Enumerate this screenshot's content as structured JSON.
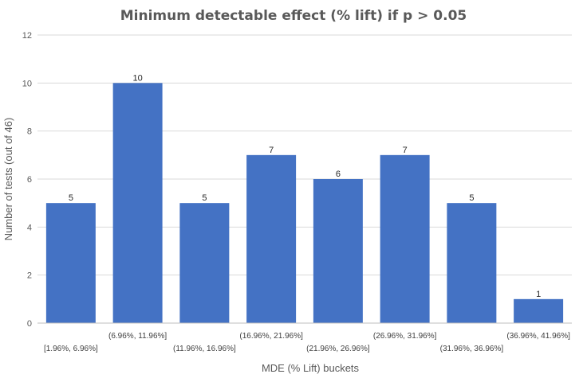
{
  "chart_data": {
    "type": "bar",
    "title": "Minimum detectable effect (% lift) if p > 0.05",
    "xlabel": "MDE (% Lift) buckets",
    "ylabel": "Number of tests (out of 46)",
    "categories": [
      "[1.96%, 6.96%]",
      "(6.96%, 11.96%]",
      "(11.96%, 16.96%]",
      "(16.96%, 21.96%]",
      "(21.96%, 26.96%]",
      "(26.96%, 31.96%]",
      "(31.96%, 36.96%]",
      "(36.96%, 41.96%]"
    ],
    "values": [
      5,
      10,
      5,
      7,
      6,
      7,
      5,
      1
    ],
    "ylim": [
      0,
      12
    ],
    "yticks": [
      0,
      2,
      4,
      6,
      8,
      10,
      12
    ],
    "grid": true,
    "legend": "none",
    "bar_color": "#4472c4"
  }
}
